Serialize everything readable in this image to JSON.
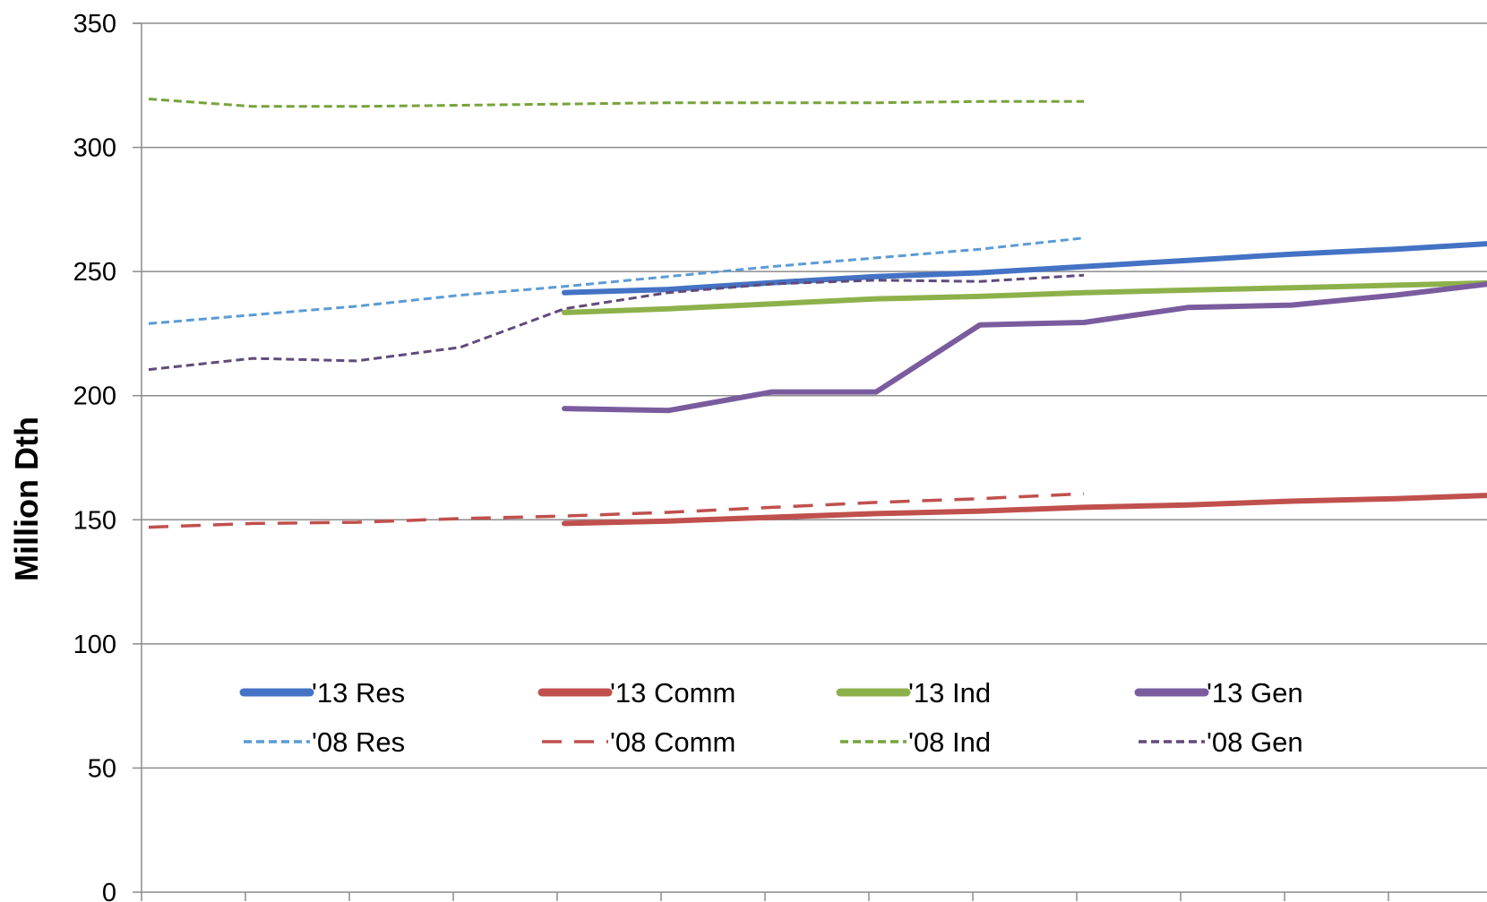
{
  "chart_data": {
    "type": "line",
    "title": "",
    "xlabel": "",
    "ylabel": "Million Dth",
    "ylim": [
      0,
      350
    ],
    "yticks": [
      0,
      50,
      100,
      150,
      200,
      250,
      300,
      350
    ],
    "grid": true,
    "x": [
      1,
      2,
      3,
      4,
      5,
      6,
      7,
      8,
      9,
      10,
      11,
      12,
      13,
      14
    ],
    "legend_position": "lower-middle",
    "series": [
      {
        "name": "'13 Res",
        "color": "#4472C4",
        "style": "solid",
        "values": [
          null,
          null,
          null,
          null,
          241.5,
          242.8,
          245.5,
          248.0,
          249.5,
          252.0,
          254.5,
          257.0,
          259.0,
          261.5
        ]
      },
      {
        "name": "'13 Comm",
        "color": "#C0504D",
        "style": "solid",
        "values": [
          null,
          null,
          null,
          null,
          148.5,
          149.5,
          151.0,
          152.5,
          153.5,
          155.0,
          156.0,
          157.5,
          158.5,
          160.0
        ]
      },
      {
        "name": "'13 Ind",
        "color": "#8DB14A",
        "style": "solid",
        "values": [
          null,
          null,
          null,
          null,
          233.5,
          235.0,
          237.0,
          239.0,
          240.0,
          241.5,
          242.5,
          243.5,
          244.5,
          245.5
        ]
      },
      {
        "name": "'13 Gen",
        "color": "#7A5C9E",
        "style": "solid",
        "values": [
          null,
          null,
          null,
          null,
          194.8,
          194.0,
          201.5,
          201.5,
          228.5,
          229.5,
          235.5,
          236.5,
          240.5,
          245.5
        ]
      },
      {
        "name": "'08 Res",
        "color": "#5B9BD5",
        "style": "dotted",
        "values": [
          229.0,
          232.5,
          236.0,
          240.5,
          244.0,
          248.0,
          252.0,
          255.5,
          259.0,
          263.5,
          null,
          null,
          null,
          null
        ]
      },
      {
        "name": "'08 Comm",
        "color": "#C0504D",
        "style": "dashed",
        "values": [
          147.0,
          148.5,
          149.0,
          150.5,
          151.5,
          153.0,
          155.0,
          157.0,
          158.5,
          160.5,
          null,
          null,
          null,
          null
        ]
      },
      {
        "name": "'08 Ind",
        "color": "#77A33A",
        "style": "dotted",
        "values": [
          319.5,
          316.5,
          316.5,
          317.0,
          317.5,
          318.0,
          318.0,
          318.0,
          318.5,
          318.5,
          null,
          null,
          null,
          null
        ]
      },
      {
        "name": "'08 Gen",
        "color": "#604A7B",
        "style": "dotted",
        "values": [
          210.5,
          215.0,
          214.0,
          219.5,
          235.0,
          241.5,
          245.0,
          246.5,
          246.0,
          248.5,
          null,
          null,
          null,
          null
        ]
      }
    ]
  }
}
